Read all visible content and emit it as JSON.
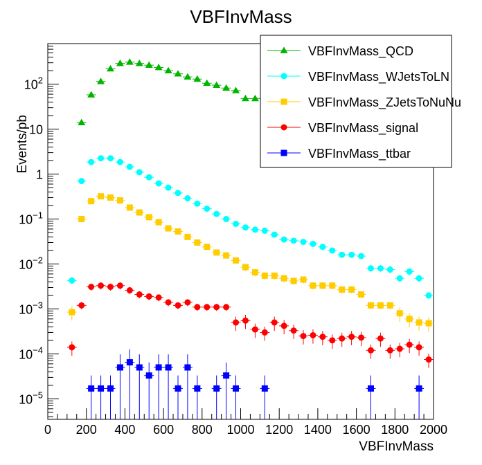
{
  "chart_data": {
    "type": "scatter",
    "title": "VBFInvMass",
    "xlabel": "VBFInvMass",
    "ylabel": "Events/pb",
    "xlim": [
      0,
      2000
    ],
    "ylim": [
      3.5e-06,
      800
    ],
    "yscale": "log",
    "x_ticks": [
      "0",
      "200",
      "400",
      "600",
      "800",
      "1000",
      "1200",
      "1400",
      "1600",
      "1800",
      "2000"
    ],
    "y_ticks": [
      {
        "base": "10",
        "exp": "−5"
      },
      {
        "base": "10",
        "exp": "−4"
      },
      {
        "base": "10",
        "exp": "−3"
      },
      {
        "base": "10",
        "exp": "−2"
      },
      {
        "base": "10",
        "exp": "−1"
      },
      {
        "base": "1",
        "exp": ""
      },
      {
        "base": "10",
        "exp": ""
      },
      {
        "base": "10",
        "exp": "2"
      }
    ],
    "legend_position": "top-right",
    "series": [
      {
        "name": "VBFInvMass_QCD",
        "color": "#00b400",
        "marker": "triangle",
        "x": [
          175,
          225,
          275,
          325,
          375,
          425,
          475,
          525,
          575,
          625,
          675,
          725,
          775,
          825,
          875,
          925,
          975,
          1025,
          1075,
          1125
        ],
        "y": [
          14,
          58,
          115,
          220,
          290,
          310,
          290,
          265,
          235,
          200,
          170,
          145,
          130,
          105,
          95,
          82,
          72,
          48,
          48,
          45
        ]
      },
      {
        "name": "VBFInvMass_WJetsToLN",
        "color": "#00ffff",
        "marker": "circle",
        "x": [
          125,
          175,
          225,
          275,
          325,
          375,
          425,
          475,
          525,
          575,
          625,
          675,
          725,
          775,
          825,
          875,
          925,
          975,
          1025,
          1075,
          1125,
          1175,
          1225,
          1275,
          1325,
          1375,
          1425,
          1475,
          1525,
          1575,
          1625,
          1675,
          1725,
          1775,
          1825,
          1875,
          1925,
          1975
        ],
        "y": [
          0.0043,
          0.7,
          1.85,
          2.25,
          2.25,
          1.85,
          1.45,
          1.1,
          0.85,
          0.62,
          0.5,
          0.38,
          0.29,
          0.22,
          0.17,
          0.13,
          0.1,
          0.078,
          0.065,
          0.058,
          0.055,
          0.045,
          0.035,
          0.033,
          0.031,
          0.028,
          0.024,
          0.02,
          0.016,
          0.016,
          0.015,
          0.008,
          0.008,
          0.0075,
          0.0048,
          0.0068,
          0.0048,
          0.002
        ]
      },
      {
        "name": "VBFInvMass_ZJetsToNuNu",
        "color": "#ffcc00",
        "marker": "square",
        "x": [
          125,
          175,
          225,
          275,
          325,
          375,
          425,
          475,
          525,
          575,
          625,
          675,
          725,
          775,
          825,
          875,
          925,
          975,
          1025,
          1075,
          1125,
          1175,
          1225,
          1275,
          1325,
          1375,
          1425,
          1475,
          1525,
          1575,
          1625,
          1675,
          1725,
          1775,
          1825,
          1875,
          1925,
          1975
        ],
        "y": [
          0.00085,
          0.1,
          0.25,
          0.32,
          0.3,
          0.26,
          0.18,
          0.14,
          0.11,
          0.085,
          0.062,
          0.053,
          0.04,
          0.03,
          0.024,
          0.018,
          0.0155,
          0.012,
          0.0085,
          0.0065,
          0.0055,
          0.0055,
          0.0048,
          0.0042,
          0.0045,
          0.0033,
          0.0033,
          0.0033,
          0.0027,
          0.0027,
          0.0021,
          0.0012,
          0.0012,
          0.0012,
          0.0008,
          0.0006,
          0.0005,
          0.00048
        ]
      },
      {
        "name": "VBFInvMass_signal",
        "color": "#ff0000",
        "marker": "circle",
        "x": [
          125,
          175,
          225,
          275,
          325,
          375,
          425,
          475,
          525,
          575,
          625,
          675,
          725,
          775,
          825,
          875,
          925,
          975,
          1025,
          1075,
          1125,
          1175,
          1225,
          1275,
          1325,
          1375,
          1425,
          1475,
          1525,
          1575,
          1625,
          1675,
          1725,
          1775,
          1825,
          1875,
          1925,
          1975
        ],
        "y": [
          0.00014,
          0.0012,
          0.0031,
          0.0033,
          0.0031,
          0.0033,
          0.0026,
          0.0021,
          0.0019,
          0.0018,
          0.0014,
          0.0012,
          0.0014,
          0.0011,
          0.0011,
          0.0011,
          0.0011,
          0.0005,
          0.00055,
          0.00035,
          0.0003,
          0.0005,
          0.00042,
          0.00033,
          0.00025,
          0.00026,
          0.00024,
          0.0002,
          0.00022,
          0.00024,
          0.00023,
          0.00012,
          0.00022,
          0.00012,
          0.00013,
          0.00016,
          0.00014,
          7.5e-05
        ]
      },
      {
        "name": "VBFInvMass_ttbar",
        "color": "#0000ff",
        "marker": "square",
        "x": [
          225,
          275,
          325,
          375,
          425,
          475,
          525,
          575,
          625,
          675,
          725,
          775,
          875,
          925,
          975,
          1125,
          1675,
          1925
        ],
        "y": [
          1.7e-05,
          1.7e-05,
          1.7e-05,
          5e-05,
          6.5e-05,
          5e-05,
          3.3e-05,
          5e-05,
          5e-05,
          1.7e-05,
          5e-05,
          1.7e-05,
          1.7e-05,
          3.3e-05,
          1.7e-05,
          1.7e-05,
          1.7e-05,
          1.7e-05
        ]
      }
    ]
  }
}
